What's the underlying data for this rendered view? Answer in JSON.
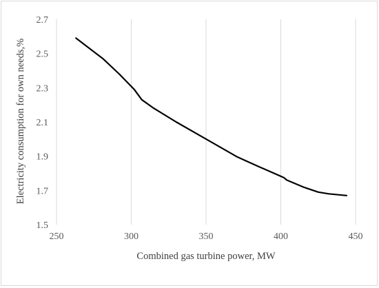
{
  "chart_data": {
    "type": "line",
    "title": "",
    "xlabel": "Combined gas turbine power, MW",
    "ylabel": "Electricity consumption for own needs,%",
    "xlim": [
      250,
      450
    ],
    "ylim": [
      1.5,
      2.7
    ],
    "x_ticks": [
      250,
      300,
      350,
      400,
      450
    ],
    "y_ticks": [
      1.5,
      1.7,
      1.9,
      2.1,
      2.3,
      2.5,
      2.7
    ],
    "y_tick_labels": [
      "1.5",
      "1.7",
      "1.9",
      "2.1",
      "2.3",
      "2.5",
      "2.7"
    ],
    "x_tick_labels": [
      "250",
      "300",
      "350",
      "400",
      "450"
    ],
    "grid": {
      "vertical": true,
      "horizontal": false
    },
    "legend": "none",
    "line_color": "#000000",
    "series": [
      {
        "x": [
          263,
          281,
          292,
          302,
          307,
          315,
          330,
          350,
          371,
          385,
          402,
          404,
          415,
          425,
          432,
          444
        ],
        "y": [
          2.59,
          2.47,
          2.38,
          2.29,
          2.23,
          2.18,
          2.1,
          2.0,
          1.895,
          1.84,
          1.775,
          1.76,
          1.72,
          1.69,
          1.68,
          1.67
        ]
      }
    ]
  }
}
